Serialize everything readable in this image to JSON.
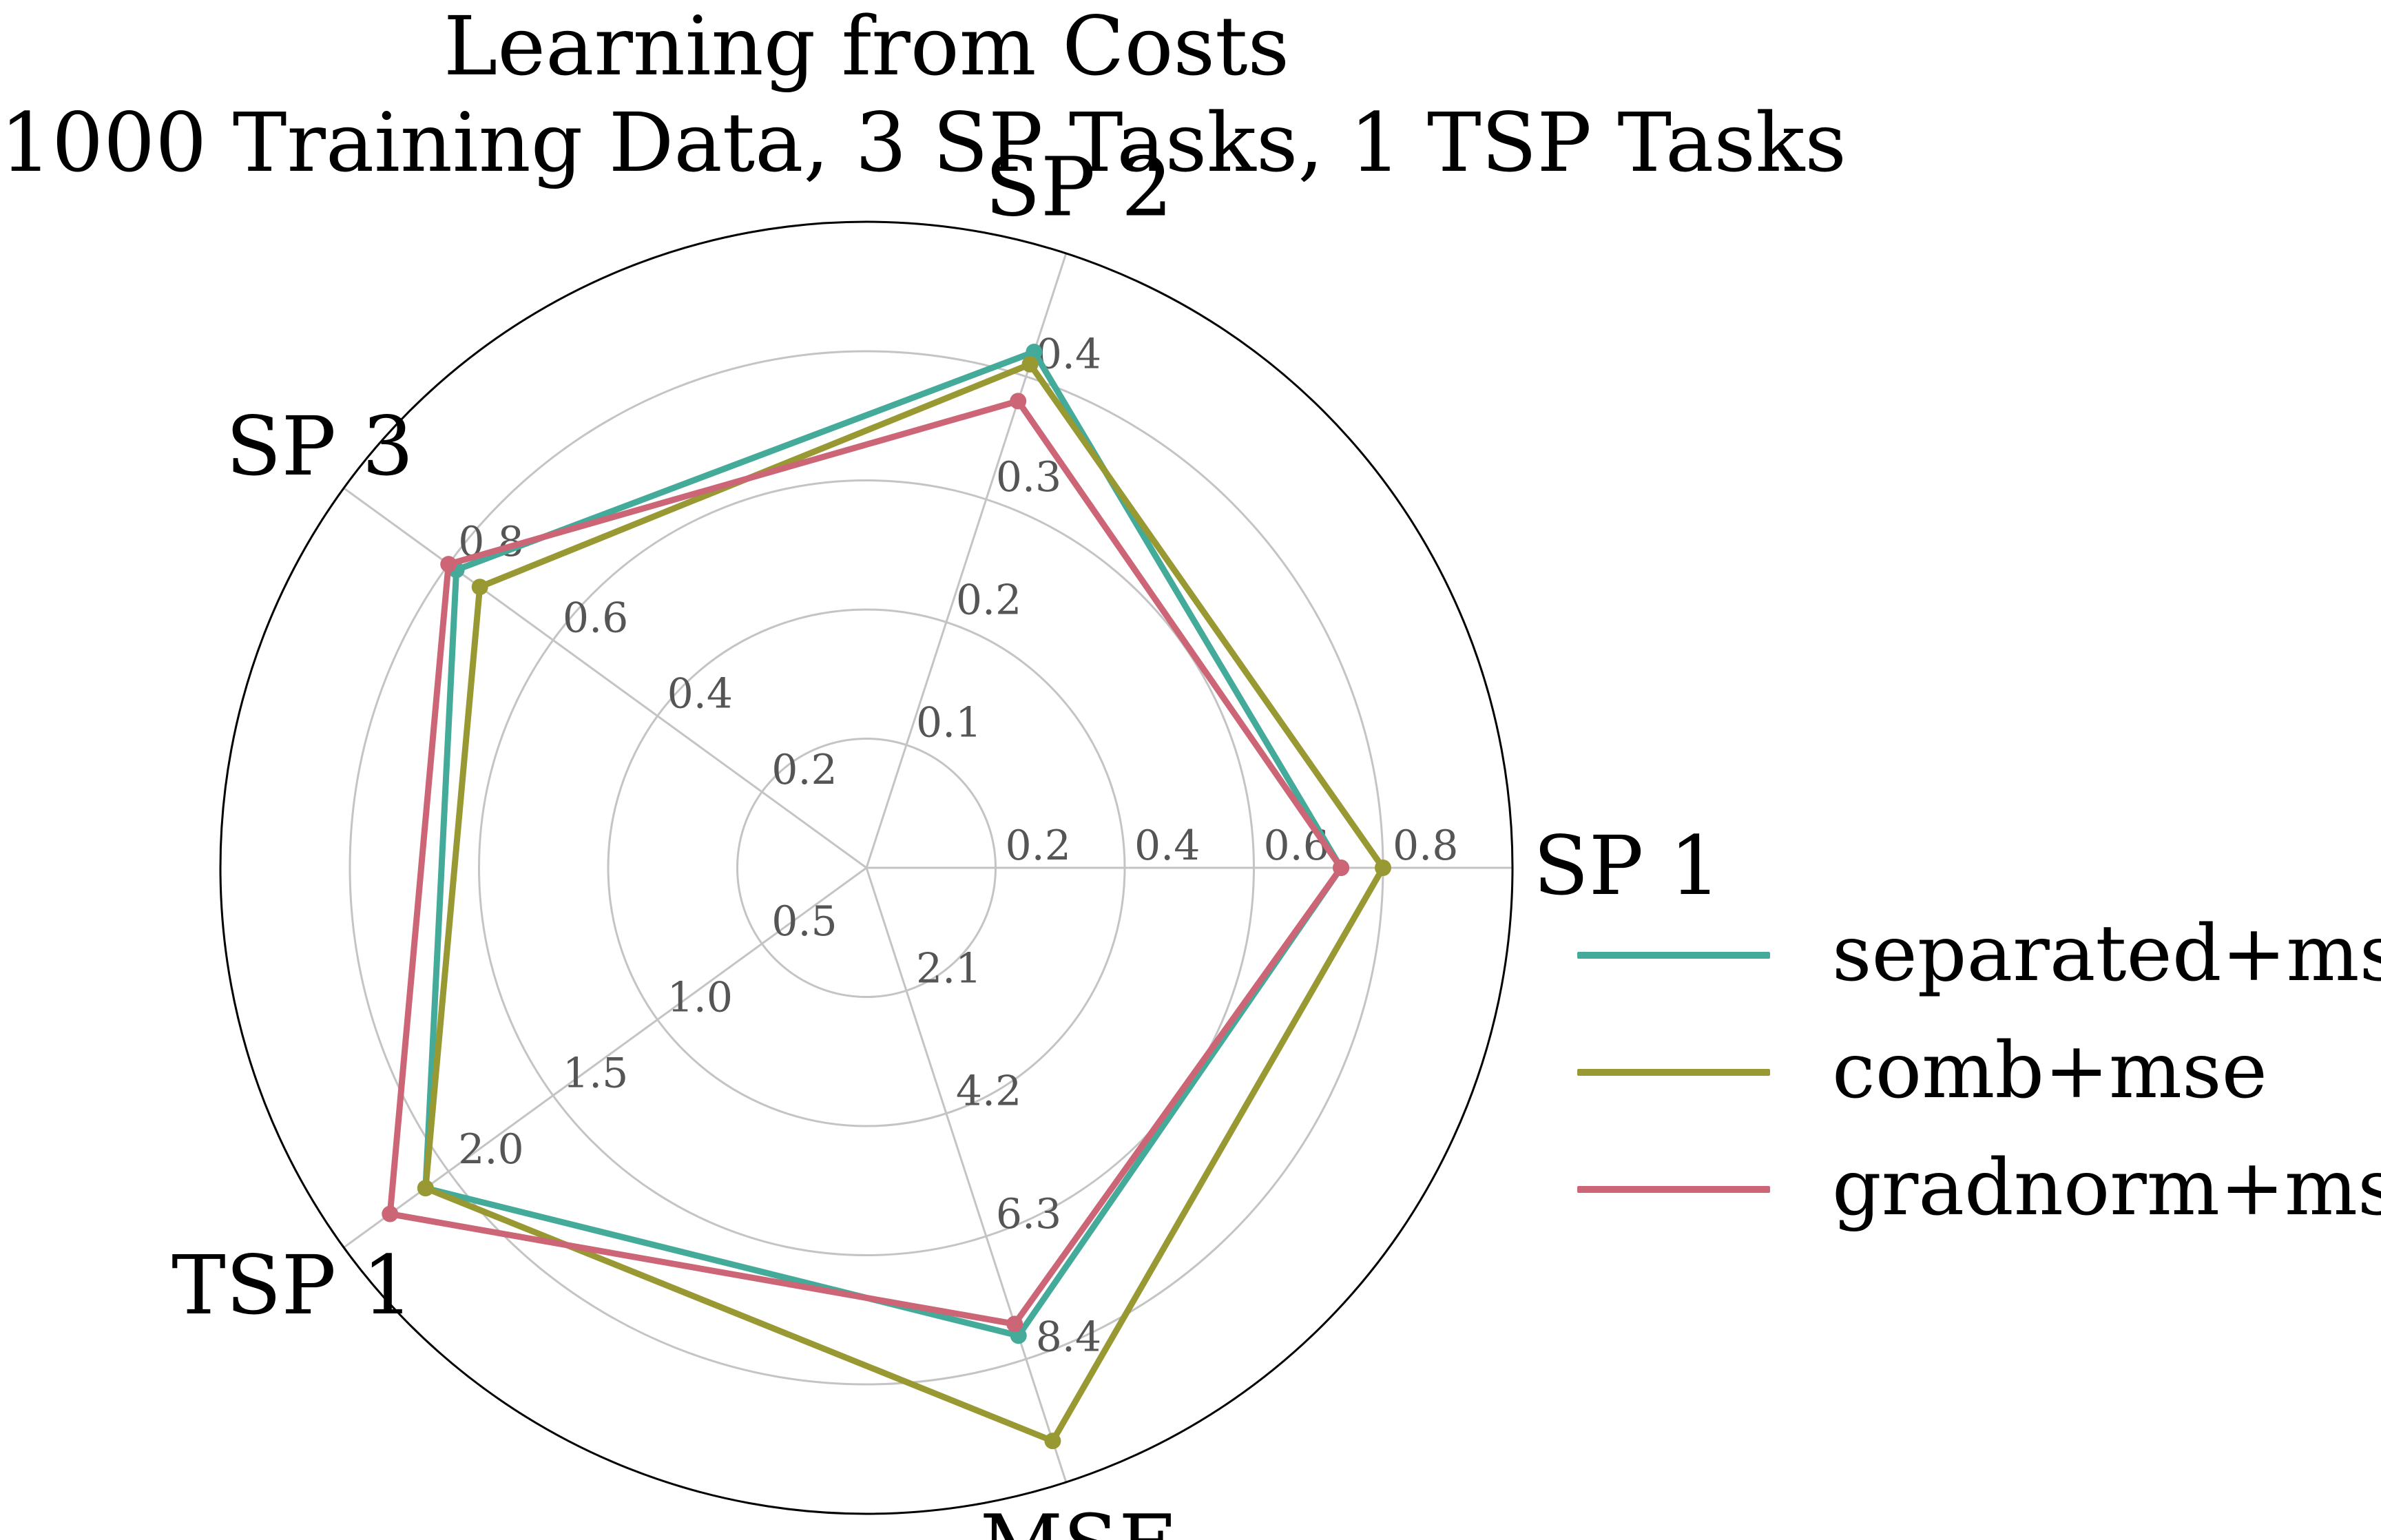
{
  "chart_data": {
    "type": "radar",
    "title": "Learning from Costs",
    "subtitle": "1000 Training Data, 3 SP Tasks, 1 TSP Tasks",
    "axes": [
      {
        "name": "SP 1",
        "max": 0.8,
        "ticks": [
          "0.2",
          "0.4",
          "0.6",
          "0.8"
        ]
      },
      {
        "name": "SP 2",
        "max": 0.4,
        "ticks": [
          "0.1",
          "0.2",
          "0.3",
          "0.4"
        ]
      },
      {
        "name": "SP 3",
        "max": 0.8,
        "ticks": [
          "0.2",
          "0.4",
          "0.6",
          "0.8"
        ]
      },
      {
        "name": "TSP 1",
        "max": 2.0,
        "ticks": [
          "0.5",
          "1.0",
          "1.5",
          "2.0"
        ]
      },
      {
        "name": "MSE",
        "max": 8.4,
        "ticks": [
          "2.1",
          "4.2",
          "6.3",
          "8.4"
        ]
      }
    ],
    "series": [
      {
        "name": "separated+mse",
        "color": "#44aa99",
        "values": [
          0.735,
          0.42,
          0.785,
          2.11,
          8.0
        ]
      },
      {
        "name": "comb+mse",
        "color": "#999933",
        "values": [
          0.8,
          0.41,
          0.74,
          2.11,
          9.8
        ]
      },
      {
        "name": "gradnorm+mse",
        "color": "#cc6677",
        "values": [
          0.735,
          0.38,
          0.8,
          2.28,
          7.8
        ]
      }
    ],
    "grid": true,
    "legend": "right"
  }
}
